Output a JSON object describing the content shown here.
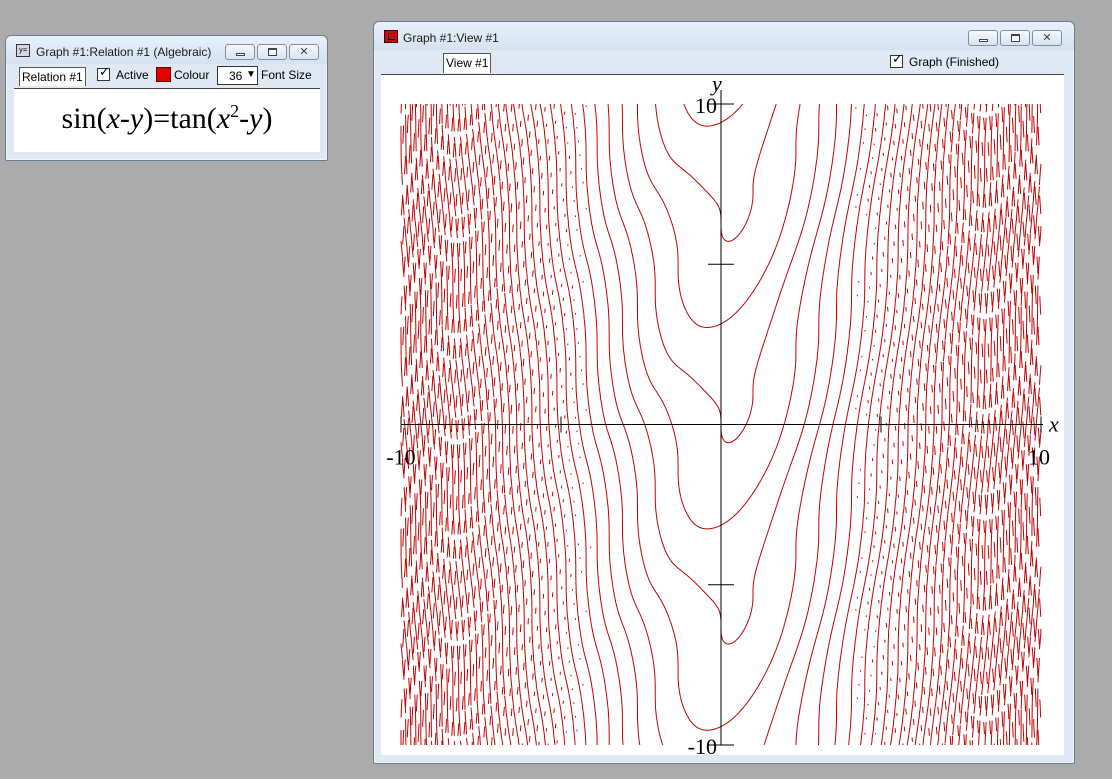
{
  "relation_window": {
    "title": "Graph #1:Relation #1 (Algebraic)",
    "relation_label": "Relation #1",
    "active_label": "Active",
    "active_checked": true,
    "colour_label": "Colour",
    "colour_value": "#e00000",
    "font_size_value": "36",
    "font_size_label": "Font Size",
    "equation": {
      "lhs_func": "sin",
      "lhs_x": "x",
      "lhs_minus": "-",
      "lhs_y": "y",
      "equals": "=",
      "rhs_func": "tan",
      "rhs_x": "x",
      "rhs_exp": "2",
      "rhs_minus": "-",
      "rhs_y": "y"
    }
  },
  "view_window": {
    "title": "Graph #1:View #1",
    "view_tab_label": "View #1",
    "graph_checked": true,
    "graph_status_label": "Graph (Finished)"
  },
  "chart_data": {
    "type": "line",
    "equation": "sin(x-y)=tan(x^2-y)",
    "x_axis_label": "x",
    "y_axis_label": "y",
    "xlim": [
      -10,
      10
    ],
    "ylim": [
      -10,
      10
    ],
    "x_tick_labels": [
      "-10",
      "10"
    ],
    "y_tick_labels": [
      "10",
      "-10"
    ],
    "x_ticks": [
      -10,
      -5,
      5,
      10
    ],
    "y_ticks": [
      -10,
      -5,
      5,
      10
    ],
    "curve_color": "#c00000"
  }
}
